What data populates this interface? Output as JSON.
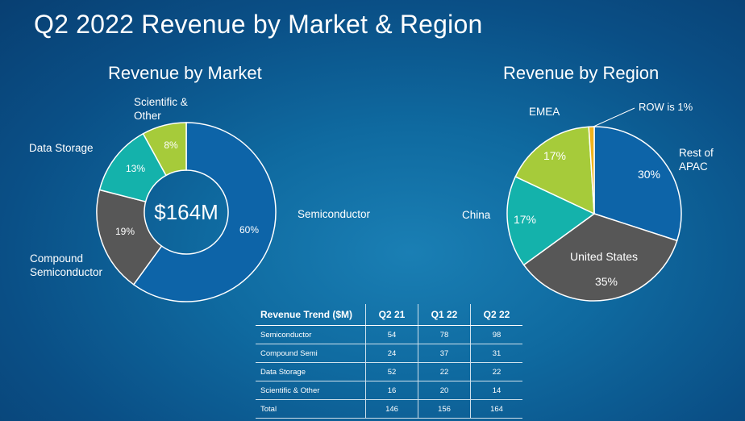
{
  "title": "Q2 2022 Revenue by Market & Region",
  "chart_data": [
    {
      "type": "pie",
      "subtype": "donut",
      "title": "Revenue by Market",
      "center_label": "$164M",
      "slices": [
        {
          "name": "Semiconductor",
          "label": "Semiconductor",
          "value": 60,
          "value_label": "60%",
          "color": "#0d64a8"
        },
        {
          "name": "Compound Semiconductor",
          "label": "Compound\nSemiconductor",
          "value": 19,
          "value_label": "19%",
          "color": "#575757"
        },
        {
          "name": "Data Storage",
          "label": "Data Storage",
          "value": 13,
          "value_label": "13%",
          "color": "#14b2ab"
        },
        {
          "name": "Scientific & Other",
          "label": "Scientific &\nOther",
          "value": 8,
          "value_label": "8%",
          "color": "#a6cb3a"
        }
      ]
    },
    {
      "type": "pie",
      "title": "Revenue by Region",
      "slices": [
        {
          "name": "Rest of APAC",
          "label": "Rest of\nAPAC",
          "value": 30,
          "value_label": "30%",
          "color": "#0d64a8"
        },
        {
          "name": "United States",
          "label": "United States",
          "value": 35,
          "value_label": "35%",
          "color": "#575757"
        },
        {
          "name": "China",
          "label": "China",
          "value": 17,
          "value_label": "17%",
          "color": "#14b2ab"
        },
        {
          "name": "EMEA",
          "label": "EMEA",
          "value": 17,
          "value_label": "17%",
          "color": "#a6cb3a"
        },
        {
          "name": "ROW",
          "label": "ROW is 1%",
          "value": 1,
          "value_label": "",
          "color": "#f2b21a"
        }
      ]
    },
    {
      "type": "table",
      "header": [
        "Revenue Trend ($M)",
        "Q2 21",
        "Q1 22",
        "Q2 22"
      ],
      "rows": [
        [
          "Semiconductor",
          "54",
          "78",
          "98"
        ],
        [
          "Compound Semi",
          "24",
          "37",
          "31"
        ],
        [
          "Data Storage",
          "52",
          "22",
          "22"
        ],
        [
          "Scientific & Other",
          "16",
          "20",
          "14"
        ],
        [
          "Total",
          "146",
          "156",
          "164"
        ]
      ]
    }
  ]
}
